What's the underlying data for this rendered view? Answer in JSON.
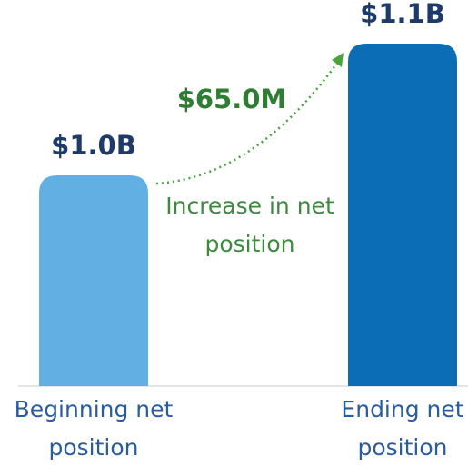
{
  "chart_data": {
    "type": "bar",
    "categories": [
      "Beginning net position",
      "Ending net position"
    ],
    "values": [
      1.0,
      1.1
    ],
    "value_labels": [
      "$1.0B",
      "$1.1B"
    ],
    "colors": [
      "#62b0e3",
      "#0a6db5"
    ],
    "ylim": [
      0.84,
      1.12
    ],
    "annotation": {
      "label": "$65.0M",
      "text": "Increase in net position"
    }
  }
}
